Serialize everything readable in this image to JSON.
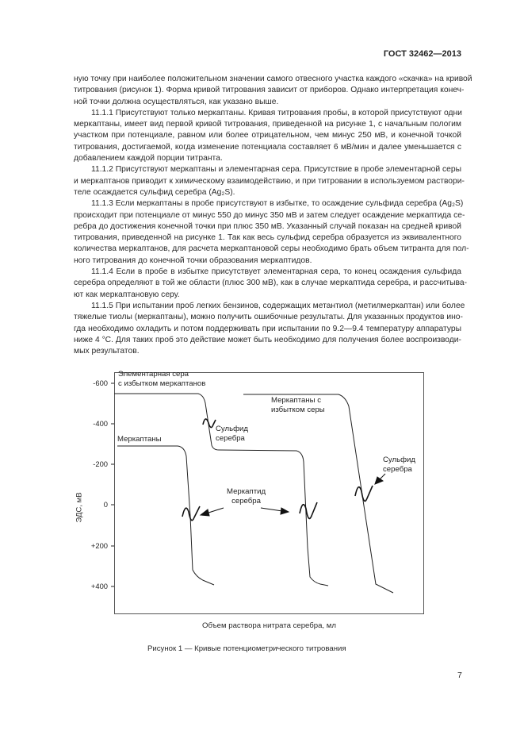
{
  "header": {
    "standard": "ГОСТ 32462—2013"
  },
  "body": {
    "paragraphs": [
      {
        "indent": false,
        "lines": [
          "ную точку при наиболее положительном значении самого отвесного участка каждого «скачка» на кривой",
          "титрования (рисунок 1). Форма кривой титрования зависит от приборов. Однако интерпретация конеч-",
          "ной точки должна осуществляться, как указано выше."
        ]
      },
      {
        "indent": true,
        "lines": [
          "11.1.1  Присутствуют только меркаптаны. Кривая титрования пробы, в которой присутствуют одни",
          "меркаптаны, имеет вид первой кривой титрования, приведенной на рисунке 1, с начальным пологим",
          "участком при потенциале, равном или более отрицательном, чем минус 250 мВ, и конечной точкой",
          "титрования, достигаемой, когда изменение потенциала составляет 6 мВ/мин и далее уменьшается с",
          "добавлением каждой порции титранта."
        ]
      },
      {
        "indent": true,
        "lines": [
          "11.1.2  Присутствуют меркаптаны и элементарная сера. Присутствие в пробе элементарной серы",
          "и меркаптанов приводит к химическому взаимодействию, и при титровании в используемом раствори-",
          "теле осаждается сульфид серебра (Ag₂S)."
        ]
      },
      {
        "indent": true,
        "lines": [
          "11.1.3  Если меркаптаны в пробе присутствуют в избытке, то осаждение сульфида серебра (Ag₂S)",
          "происходит при потенциале от минус 550 до минус 350 мВ и затем следует осаждение меркаптида се-",
          "ребра до достижения конечной точки при плюс 350 мВ. Указанный случай показан на средней кривой",
          "титрования, приведенной на рисунке 1. Так как весь сульфид серебра образуется из эквивалентного",
          "количества меркаптанов, для расчета меркаптановой серы необходимо брать объем титранта для пол-",
          "ного титрования до конечной точки образования меркаптидов."
        ]
      },
      {
        "indent": true,
        "lines": [
          "11.1.4  Если в пробе в избытке присутствует элементарная сера, то конец осаждения сульфида",
          "серебра определяют в той же области (плюс 300 мВ), как в случае меркаптида серебра, и рассчитыва-",
          "ют как меркаптановую серу."
        ]
      },
      {
        "indent": true,
        "lines": [
          "11.1.5  При испытании проб легких бензинов, содержащих метантиол (метилмеркаптан) или более",
          "тяжелые тиолы (меркаптаны), можно получить ошибочные результаты. Для указанных продуктов ино-",
          "гда необходимо охладить и потом поддерживать при испытании по 9.2—9.4 температуру аппаратуры",
          "ниже 4 °C. Для таких проб это действие может быть необходимо для получения более воспроизводи-",
          "мых результатов."
        ]
      }
    ]
  },
  "figure": {
    "y_axis_label": "ЭДС, мВ",
    "x_axis_label": "Объем раствора нитрата серебра, мл",
    "y_ticks": [
      "-600",
      "-400",
      "-200",
      "0",
      "+200",
      "+400"
    ],
    "labels": {
      "elemental_sulfur_1": "Элементарная сера",
      "elemental_sulfur_2": "с избытком меркаптанов",
      "mercaptans_excess_sulfur_1": "Меркаптаны с",
      "mercaptans_excess_sulfur_2": "избытком серы",
      "silver_sulfide_mid_1": "Сульфид",
      "silver_sulfide_mid_2": "серебра",
      "mercaptans": "Меркаптаны",
      "silver_mercaptide_1": "Меркаптид",
      "silver_mercaptide_2": "серебра",
      "silver_sulfide_right_1": "Сульфид",
      "silver_sulfide_right_2": "серебра"
    },
    "caption": "Рисунок 1 — Кривые потенциометрического титрования",
    "line_color": "#222222"
  },
  "footer": {
    "page_number": "7"
  }
}
